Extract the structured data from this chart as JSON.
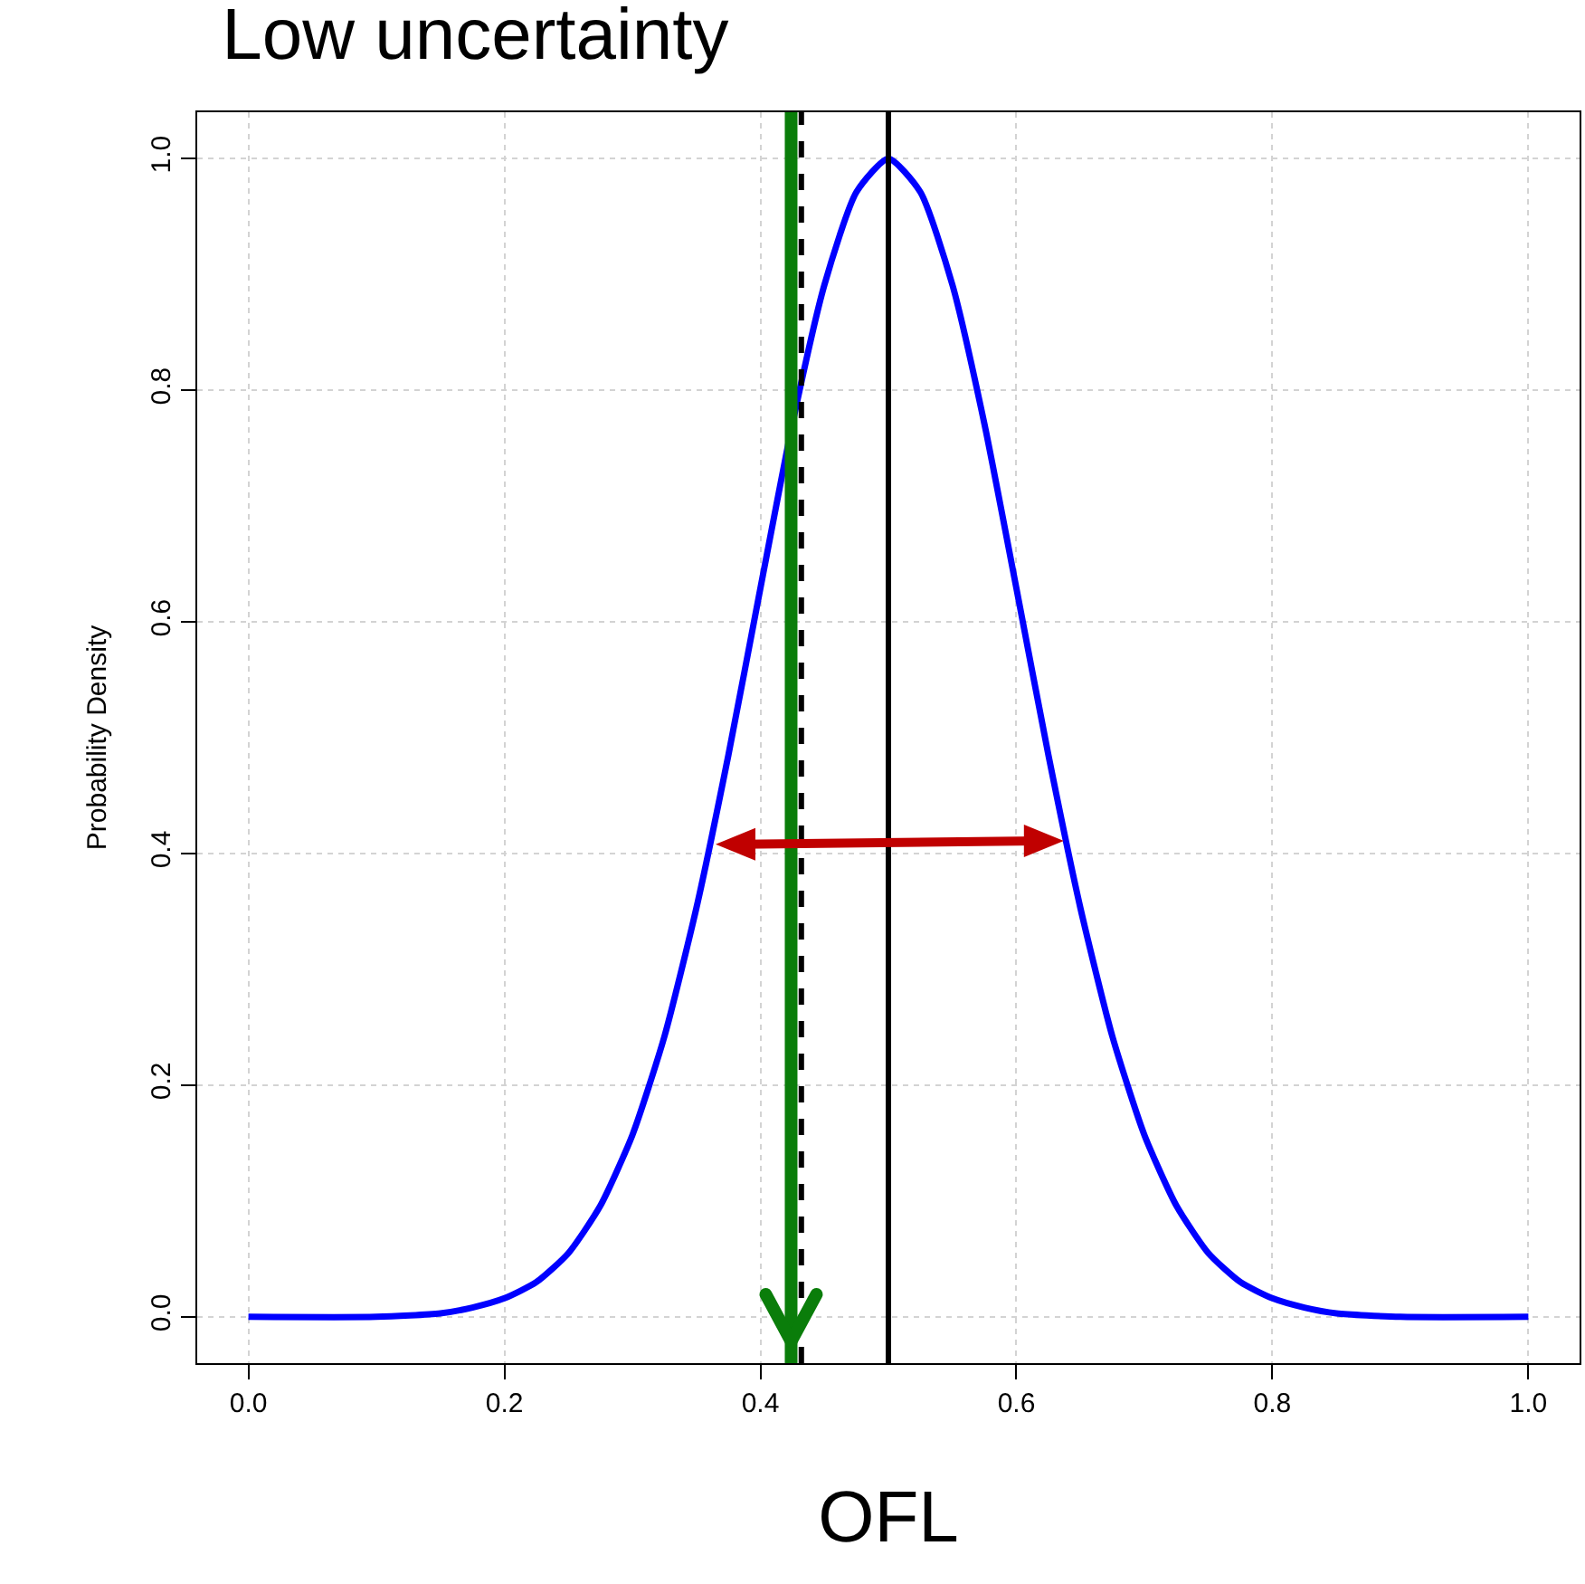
{
  "chart_data": {
    "type": "line",
    "title": "Low uncertainty",
    "xlabel": "OFL",
    "ylabel": "Probability Density",
    "x": [
      0,
      0.1,
      0.15,
      0.175,
      0.2,
      0.225,
      0.25,
      0.275,
      0.3,
      0.325,
      0.35,
      0.375,
      0.4,
      0.425,
      0.45,
      0.475,
      0.5,
      0.525,
      0.55,
      0.575,
      0.6,
      0.625,
      0.65,
      0.675,
      0.7,
      0.725,
      0.75,
      0.775,
      0.8,
      0.825,
      0.85,
      0.9,
      1
    ],
    "series": [
      {
        "color": "#0000ff",
        "values": [
          0,
          0,
          0.003,
          0.008,
          0.016,
          0.03,
          0.055,
          0.096,
          0.157,
          0.242,
          0.353,
          0.485,
          0.629,
          0.771,
          0.891,
          0.971,
          1,
          0.971,
          0.891,
          0.771,
          0.629,
          0.485,
          0.353,
          0.242,
          0.157,
          0.096,
          0.055,
          0.03,
          0.016,
          0.008,
          0.003,
          0,
          0
        ]
      }
    ],
    "xlim": [
      -0.04,
      1.04
    ],
    "ylim": [
      -0.04,
      1.04
    ],
    "xticks": [
      {
        "value": 0,
        "label": "0.0"
      },
      0.2,
      0.4,
      0.6,
      0.8,
      {
        "value": 1,
        "label": "1.0"
      }
    ],
    "yticks": [
      {
        "value": 0,
        "label": "0.0"
      },
      0.2,
      0.4,
      0.6,
      0.8,
      {
        "value": 1,
        "label": "1.0"
      }
    ],
    "ref_lines": [
      {
        "axis": "x",
        "value": 0.5,
        "color": "#000000",
        "line_style": "solid"
      },
      {
        "axis": "x",
        "value": 0.432,
        "color": "#000000",
        "line_style": "dashed"
      },
      {
        "axis": "x",
        "value": 0.424,
        "color": "#0a7d0a",
        "line_style": "solid"
      }
    ],
    "grid": true,
    "marker": "none",
    "line_style": "solid"
  }
}
